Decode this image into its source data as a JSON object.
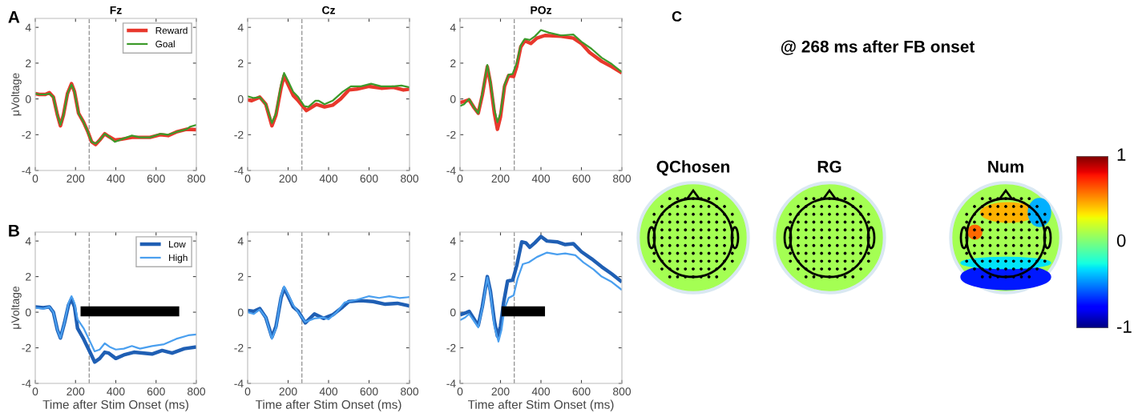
{
  "chart_data": [
    {
      "type": "line",
      "title": "Fz",
      "ylabel": "μVoltage",
      "annotations": [
        "A"
      ],
      "xlim": [
        0,
        800
      ],
      "ylim": [
        -4,
        4.5
      ],
      "xticks": [
        0,
        200,
        400,
        600,
        800
      ],
      "yticks": [
        -4,
        -2,
        0,
        2,
        4
      ],
      "legend": "top right",
      "ref_lines": [
        {
          "axis": "x",
          "value": 268,
          "color": "#999999",
          "line_style": "dashed"
        }
      ],
      "series": [
        {
          "name": "Reward",
          "color": "#e8382c",
          "x": [
            0,
            20,
            50,
            70,
            90,
            110,
            125,
            140,
            160,
            180,
            195,
            215,
            240,
            260,
            280,
            300,
            320,
            345,
            365,
            395,
            430,
            480,
            520,
            570,
            620,
            660,
            700,
            750,
            800
          ],
          "values": [
            0.3,
            0.25,
            0.25,
            0.35,
            0.1,
            -0.9,
            -1.5,
            -0.9,
            0.3,
            0.85,
            0.4,
            -0.8,
            -1.3,
            -1.8,
            -2.4,
            -2.55,
            -2.3,
            -1.95,
            -2.1,
            -2.3,
            -2.25,
            -2.15,
            -2.15,
            -2.15,
            -2.0,
            -2.05,
            -1.85,
            -1.7,
            -1.72
          ]
        },
        {
          "name": "Goal",
          "color": "#3c9a2a",
          "x": [
            0,
            20,
            50,
            70,
            90,
            110,
            125,
            140,
            160,
            180,
            195,
            215,
            240,
            260,
            280,
            300,
            320,
            345,
            365,
            395,
            430,
            480,
            520,
            570,
            620,
            660,
            700,
            750,
            770,
            800
          ],
          "values": [
            0.3,
            0.25,
            0.25,
            0.3,
            0.1,
            -0.9,
            -1.45,
            -0.9,
            0.3,
            0.8,
            0.4,
            -0.8,
            -1.3,
            -1.8,
            -2.4,
            -2.5,
            -2.3,
            -1.95,
            -2.1,
            -2.4,
            -2.25,
            -2.05,
            -2.15,
            -2.15,
            -1.95,
            -2.0,
            -1.85,
            -1.7,
            -1.55,
            -1.45
          ]
        }
      ]
    },
    {
      "type": "line",
      "title": "Cz",
      "xlim": [
        0,
        800
      ],
      "ylim": [
        -4,
        4.5
      ],
      "xticks": [
        0,
        200,
        400,
        600,
        800
      ],
      "yticks": [
        -4,
        -2,
        0,
        2,
        4
      ],
      "ref_lines": [
        {
          "axis": "x",
          "value": 268,
          "color": "#999999",
          "line_style": "dashed"
        }
      ],
      "series": [
        {
          "color": "#e8382c",
          "x": [
            0,
            20,
            60,
            90,
            120,
            140,
            165,
            180,
            200,
            225,
            250,
            290,
            340,
            380,
            420,
            460,
            500,
            540,
            600,
            660,
            720,
            770,
            800
          ],
          "values": [
            -0.05,
            -0.1,
            0.1,
            -0.3,
            -1.5,
            -0.9,
            0.6,
            1.3,
            0.8,
            0.2,
            -0.1,
            -0.65,
            -0.3,
            -0.45,
            -0.35,
            0.0,
            0.5,
            0.55,
            0.7,
            0.6,
            0.65,
            0.5,
            0.55
          ]
        },
        {
          "color": "#3c9a2a",
          "x": [
            0,
            30,
            60,
            90,
            120,
            140,
            165,
            180,
            200,
            225,
            250,
            280,
            300,
            335,
            350,
            380,
            420,
            470,
            510,
            560,
            610,
            660,
            720,
            760,
            800
          ],
          "values": [
            0.15,
            0.05,
            0.1,
            -0.3,
            -1.35,
            -0.8,
            0.8,
            1.45,
            1.0,
            0.4,
            0.1,
            -0.4,
            -0.45,
            -0.1,
            -0.1,
            -0.3,
            -0.1,
            0.4,
            0.7,
            0.7,
            0.85,
            0.7,
            0.7,
            0.75,
            0.65
          ]
        }
      ]
    },
    {
      "type": "line",
      "title": "POz",
      "xlim": [
        0,
        800
      ],
      "ylim": [
        -4,
        4.5
      ],
      "xticks": [
        0,
        200,
        400,
        600,
        800
      ],
      "yticks": [
        -4,
        -2,
        0,
        2,
        4
      ],
      "ref_lines": [
        {
          "axis": "x",
          "value": 268,
          "color": "#999999",
          "line_style": "dashed"
        }
      ],
      "series": [
        {
          "color": "#e8382c",
          "x": [
            0,
            20,
            45,
            70,
            90,
            110,
            135,
            150,
            170,
            185,
            200,
            220,
            240,
            265,
            280,
            300,
            320,
            350,
            380,
            420,
            500,
            560,
            600,
            640,
            700,
            750,
            800
          ],
          "values": [
            -0.2,
            -0.15,
            -0.05,
            -0.5,
            -0.8,
            0.2,
            1.8,
            0.9,
            -0.8,
            -1.7,
            -1.0,
            0.7,
            1.3,
            1.25,
            1.8,
            2.9,
            3.25,
            3.1,
            3.4,
            3.55,
            3.5,
            3.4,
            3.1,
            2.6,
            2.1,
            1.8,
            1.45
          ]
        },
        {
          "color": "#3c9a2a",
          "x": [
            0,
            20,
            45,
            70,
            90,
            110,
            135,
            150,
            170,
            185,
            200,
            220,
            240,
            260,
            280,
            300,
            320,
            345,
            370,
            400,
            440,
            500,
            560,
            600,
            650,
            700,
            750,
            800
          ],
          "values": [
            -0.4,
            -0.3,
            0.0,
            -0.5,
            -0.8,
            0.3,
            1.9,
            1.0,
            -0.6,
            -1.3,
            -0.8,
            0.8,
            1.35,
            1.4,
            2.0,
            3.0,
            3.35,
            3.3,
            3.5,
            3.85,
            3.7,
            3.55,
            3.6,
            3.2,
            2.8,
            2.3,
            1.95,
            1.5
          ]
        }
      ]
    },
    {
      "type": "line",
      "xlabel": "Time after Stim Onset (ms)",
      "ylabel": "μVoltage",
      "annotations": [
        "B"
      ],
      "xlim": [
        0,
        800
      ],
      "ylim": [
        -4,
        4.5
      ],
      "xticks": [
        0,
        200,
        400,
        600,
        800
      ],
      "yticks": [
        -4,
        -2,
        0,
        2,
        4
      ],
      "legend": "top right",
      "ref_lines": [
        {
          "axis": "x",
          "value": 268,
          "color": "#999999",
          "line_style": "dashed"
        }
      ],
      "series": [
        {
          "name": "Low",
          "color": "#1f5fb4",
          "x": [
            0,
            40,
            70,
            90,
            110,
            125,
            145,
            165,
            180,
            195,
            210,
            240,
            270,
            295,
            320,
            345,
            365,
            400,
            440,
            490,
            540,
            580,
            630,
            680,
            740,
            800
          ],
          "values": [
            0.3,
            0.25,
            0.3,
            0.0,
            -1.0,
            -1.45,
            -0.6,
            0.4,
            0.75,
            0.3,
            -0.9,
            -1.5,
            -2.2,
            -2.8,
            -2.6,
            -2.25,
            -2.3,
            -2.6,
            -2.4,
            -2.25,
            -2.3,
            -2.35,
            -2.15,
            -2.3,
            -2.05,
            -1.95
          ]
        },
        {
          "name": "High",
          "color": "#4a9fef",
          "x": [
            0,
            40,
            70,
            90,
            110,
            125,
            145,
            165,
            180,
            195,
            210,
            240,
            270,
            295,
            320,
            345,
            370,
            400,
            440,
            480,
            520,
            580,
            640,
            700,
            760,
            800
          ],
          "values": [
            0.25,
            0.2,
            0.3,
            0.0,
            -1.0,
            -1.45,
            -0.6,
            0.5,
            0.9,
            0.5,
            -0.4,
            -0.9,
            -1.6,
            -2.2,
            -2.1,
            -1.75,
            -1.95,
            -2.1,
            -2.05,
            -1.9,
            -2.05,
            -1.9,
            -1.8,
            -1.5,
            -1.3,
            -1.25
          ]
        },
        {
          "color": "#000000",
          "x": [
            225,
            715
          ],
          "values": [
            0.05,
            0.05
          ]
        }
      ]
    },
    {
      "type": "line",
      "xlabel": "Time after Stim Onset (ms)",
      "xlim": [
        0,
        800
      ],
      "ylim": [
        -4,
        4.5
      ],
      "xticks": [
        0,
        200,
        400,
        600,
        800
      ],
      "yticks": [
        -4,
        -2,
        0,
        2,
        4
      ],
      "ref_lines": [
        {
          "axis": "x",
          "value": 268,
          "color": "#999999",
          "line_style": "dashed"
        }
      ],
      "series": [
        {
          "color": "#1f5fb4",
          "x": [
            0,
            30,
            60,
            90,
            120,
            140,
            165,
            180,
            200,
            225,
            250,
            285,
            330,
            375,
            420,
            470,
            500,
            560,
            620,
            680,
            740,
            800
          ],
          "values": [
            0.1,
            0.05,
            0.2,
            -0.3,
            -1.4,
            -0.8,
            0.8,
            1.35,
            0.9,
            0.3,
            0.05,
            -0.6,
            -0.1,
            -0.35,
            -0.15,
            0.3,
            0.6,
            0.65,
            0.6,
            0.45,
            0.5,
            0.35
          ]
        },
        {
          "color": "#4a9fef",
          "x": [
            0,
            30,
            60,
            90,
            120,
            140,
            165,
            180,
            200,
            225,
            250,
            285,
            330,
            375,
            400,
            440,
            480,
            540,
            600,
            650,
            700,
            750,
            800
          ],
          "values": [
            0.0,
            -0.1,
            0.15,
            -0.3,
            -1.5,
            -0.9,
            0.9,
            1.45,
            1.0,
            0.4,
            0.0,
            -0.55,
            -0.35,
            -0.3,
            -0.4,
            0.0,
            0.55,
            0.7,
            0.9,
            0.8,
            0.9,
            0.8,
            0.85
          ]
        }
      ]
    },
    {
      "type": "line",
      "xlabel": "Time after Stim Onset (ms)",
      "xlim": [
        0,
        800
      ],
      "ylim": [
        -4,
        4.5
      ],
      "xticks": [
        0,
        200,
        400,
        600,
        800
      ],
      "yticks": [
        -4,
        -2,
        0,
        2,
        4
      ],
      "ref_lines": [
        {
          "axis": "x",
          "value": 268,
          "color": "#999999",
          "line_style": "dashed"
        }
      ],
      "series": [
        {
          "color": "#1f5fb4",
          "x": [
            0,
            25,
            45,
            70,
            90,
            110,
            135,
            150,
            170,
            185,
            200,
            215,
            235,
            260,
            280,
            305,
            325,
            345,
            370,
            400,
            430,
            480,
            520,
            560,
            600,
            650,
            700,
            750,
            800
          ],
          "values": [
            -0.15,
            -0.05,
            0.05,
            -0.4,
            -0.75,
            0.3,
            2.0,
            1.2,
            -0.5,
            -1.35,
            -0.8,
            0.5,
            1.75,
            1.8,
            2.6,
            3.95,
            3.9,
            3.65,
            3.9,
            4.25,
            4.0,
            3.95,
            3.8,
            3.85,
            3.4,
            3.0,
            2.55,
            2.15,
            1.7
          ]
        },
        {
          "color": "#4a9fef",
          "x": [
            0,
            25,
            45,
            70,
            90,
            110,
            135,
            150,
            170,
            190,
            205,
            220,
            240,
            265,
            285,
            310,
            340,
            380,
            430,
            480,
            520,
            570,
            610,
            660,
            700,
            750,
            800
          ],
          "values": [
            -0.45,
            -0.3,
            -0.1,
            -0.5,
            -0.85,
            0.2,
            1.95,
            1.1,
            -0.8,
            -1.65,
            -1.0,
            0.2,
            0.8,
            0.95,
            1.9,
            2.7,
            2.8,
            3.1,
            3.35,
            3.25,
            3.3,
            3.2,
            2.8,
            2.4,
            2.0,
            1.7,
            1.25
          ]
        },
        {
          "color": "#000000",
          "x": [
            205,
            420
          ],
          "values": [
            0.05,
            0.05
          ]
        }
      ]
    },
    {
      "type": "other",
      "title": "@ 268 ms after FB onset",
      "annotations": [
        "C",
        "QChosen",
        "RG",
        "Num"
      ]
    },
    {
      "type": "other",
      "annotations": [
        "1",
        "0",
        "-1"
      ]
    }
  ]
}
